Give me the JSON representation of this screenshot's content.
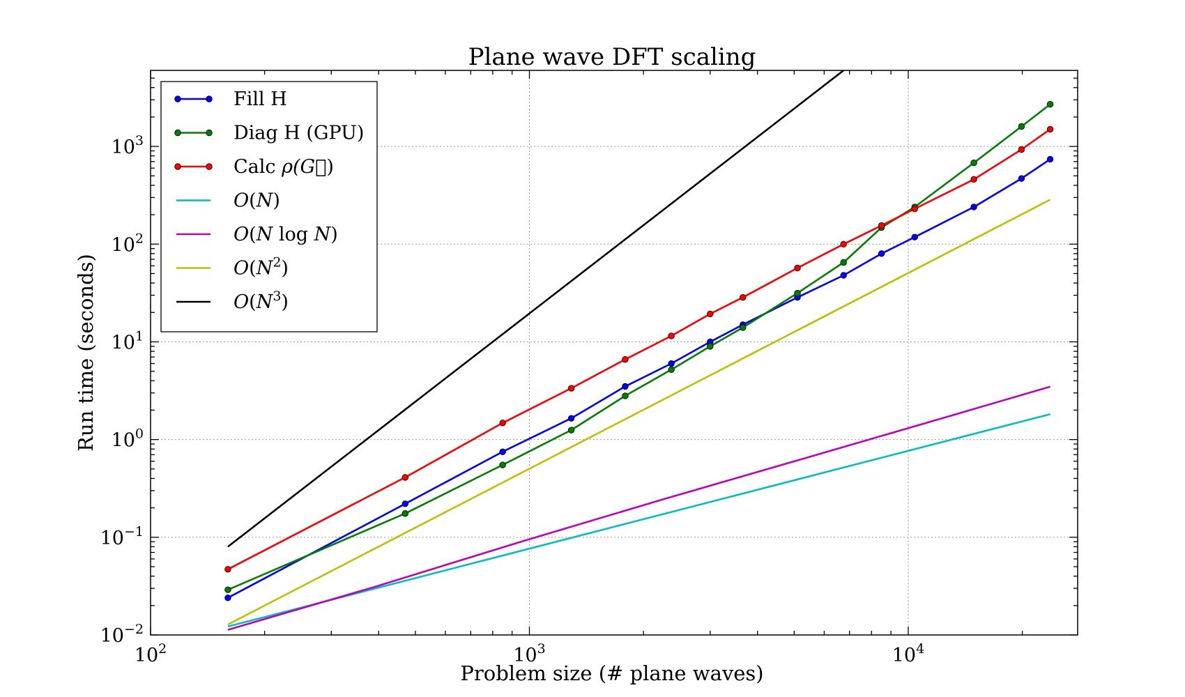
{
  "chart_data": {
    "type": "line",
    "title": "Plane wave DFT scaling",
    "xlabel": "Problem size (# plane waves)",
    "ylabel": "Run time (seconds)",
    "xscale": "log",
    "yscale": "log",
    "xlim": [
      100,
      28000
    ],
    "ylim": [
      0.01,
      6000
    ],
    "xticks": [
      {
        "value": 100,
        "base": "10",
        "exp": "2"
      },
      {
        "value": 1000,
        "base": "10",
        "exp": "3"
      },
      {
        "value": 10000,
        "base": "10",
        "exp": "4"
      }
    ],
    "yticks": [
      {
        "value": 0.01,
        "base": "10",
        "exp": "−2"
      },
      {
        "value": 0.1,
        "base": "10",
        "exp": "−1"
      },
      {
        "value": 1,
        "base": "10",
        "exp": "0"
      },
      {
        "value": 10,
        "base": "10",
        "exp": "1"
      },
      {
        "value": 100,
        "base": "10",
        "exp": "2"
      },
      {
        "value": 1000,
        "base": "10",
        "exp": "3"
      }
    ],
    "grid": true,
    "legend_position": "top-left",
    "series": [
      {
        "name": "Fill H",
        "color": "#0000ff",
        "markers": true,
        "x": [
          160,
          470,
          850,
          1290,
          1790,
          2370,
          3000,
          3660,
          5100,
          6750,
          8500,
          10400,
          14900,
          19900,
          23700
        ],
        "y": [
          0.024,
          0.22,
          0.75,
          1.65,
          3.5,
          6.0,
          10.0,
          15.0,
          28.5,
          48,
          80,
          118,
          240,
          470,
          740
        ]
      },
      {
        "name": "Diag H (GPU)",
        "color": "#007f00",
        "markers": true,
        "x": [
          160,
          470,
          850,
          1290,
          1790,
          2370,
          3000,
          3660,
          5100,
          6750,
          8500,
          10400,
          14900,
          19900,
          23700
        ],
        "y": [
          0.029,
          0.175,
          0.55,
          1.25,
          2.8,
          5.2,
          9.0,
          14.0,
          31.5,
          65,
          148,
          240,
          680,
          1600,
          2700
        ]
      },
      {
        "name": "Calc ρ(G⃗)",
        "color": "#ff0000",
        "markers": true,
        "x": [
          160,
          470,
          850,
          1290,
          1790,
          2370,
          3000,
          3660,
          5100,
          6750,
          8500,
          10400,
          14900,
          19900,
          23700
        ],
        "y": [
          0.047,
          0.41,
          1.48,
          3.35,
          6.6,
          11.5,
          19.3,
          28.5,
          57,
          100,
          155,
          230,
          460,
          930,
          1500
        ]
      },
      {
        "name": "O(N)",
        "color": "#00bfbf",
        "markers": false,
        "x": [
          160,
          23700
        ],
        "y": [
          0.0122,
          1.82
        ]
      },
      {
        "name": "O(N log N)",
        "color": "#bf00bf",
        "markers": false,
        "x": [
          160,
          390,
          950,
          2300,
          5600,
          13000,
          23700
        ],
        "y": [
          0.0113,
          0.031,
          0.09,
          0.25,
          0.68,
          1.76,
          3.48
        ]
      },
      {
        "name": "O(N²)",
        "color": "#bfbf00",
        "markers": false,
        "x": [
          160,
          23700
        ],
        "y": [
          0.0128,
          285
        ]
      },
      {
        "name": "O(N³)",
        "color": "#000000",
        "markers": false,
        "x": [
          160,
          6750
        ],
        "y": [
          0.08,
          6000
        ]
      }
    ],
    "legend": [
      {
        "series": 0,
        "parts": [
          {
            "t": "Fill H"
          }
        ]
      },
      {
        "series": 1,
        "parts": [
          {
            "t": "Diag H (GPU)"
          }
        ]
      },
      {
        "series": 2,
        "parts": [
          {
            "t": "Calc "
          },
          {
            "t": "ρ(",
            "i": true
          },
          {
            "t": "G⃗",
            "i": true
          },
          {
            "t": ")"
          }
        ]
      },
      {
        "series": 3,
        "parts": [
          {
            "t": "O",
            "i": true
          },
          {
            "t": "("
          },
          {
            "t": "N",
            "i": true
          },
          {
            "t": ")"
          }
        ]
      },
      {
        "series": 4,
        "parts": [
          {
            "t": "O",
            "i": true
          },
          {
            "t": "("
          },
          {
            "t": "N",
            "i": true
          },
          {
            "t": " log "
          },
          {
            "t": "N",
            "i": true
          },
          {
            "t": ")"
          }
        ]
      },
      {
        "series": 5,
        "parts": [
          {
            "t": "O",
            "i": true
          },
          {
            "t": "("
          },
          {
            "t": "N",
            "i": true
          },
          {
            "t": "2",
            "sup": true
          },
          {
            "t": ")"
          }
        ]
      },
      {
        "series": 6,
        "parts": [
          {
            "t": "O",
            "i": true
          },
          {
            "t": "("
          },
          {
            "t": "N",
            "i": true
          },
          {
            "t": "3",
            "sup": true
          },
          {
            "t": ")"
          }
        ]
      }
    ]
  }
}
